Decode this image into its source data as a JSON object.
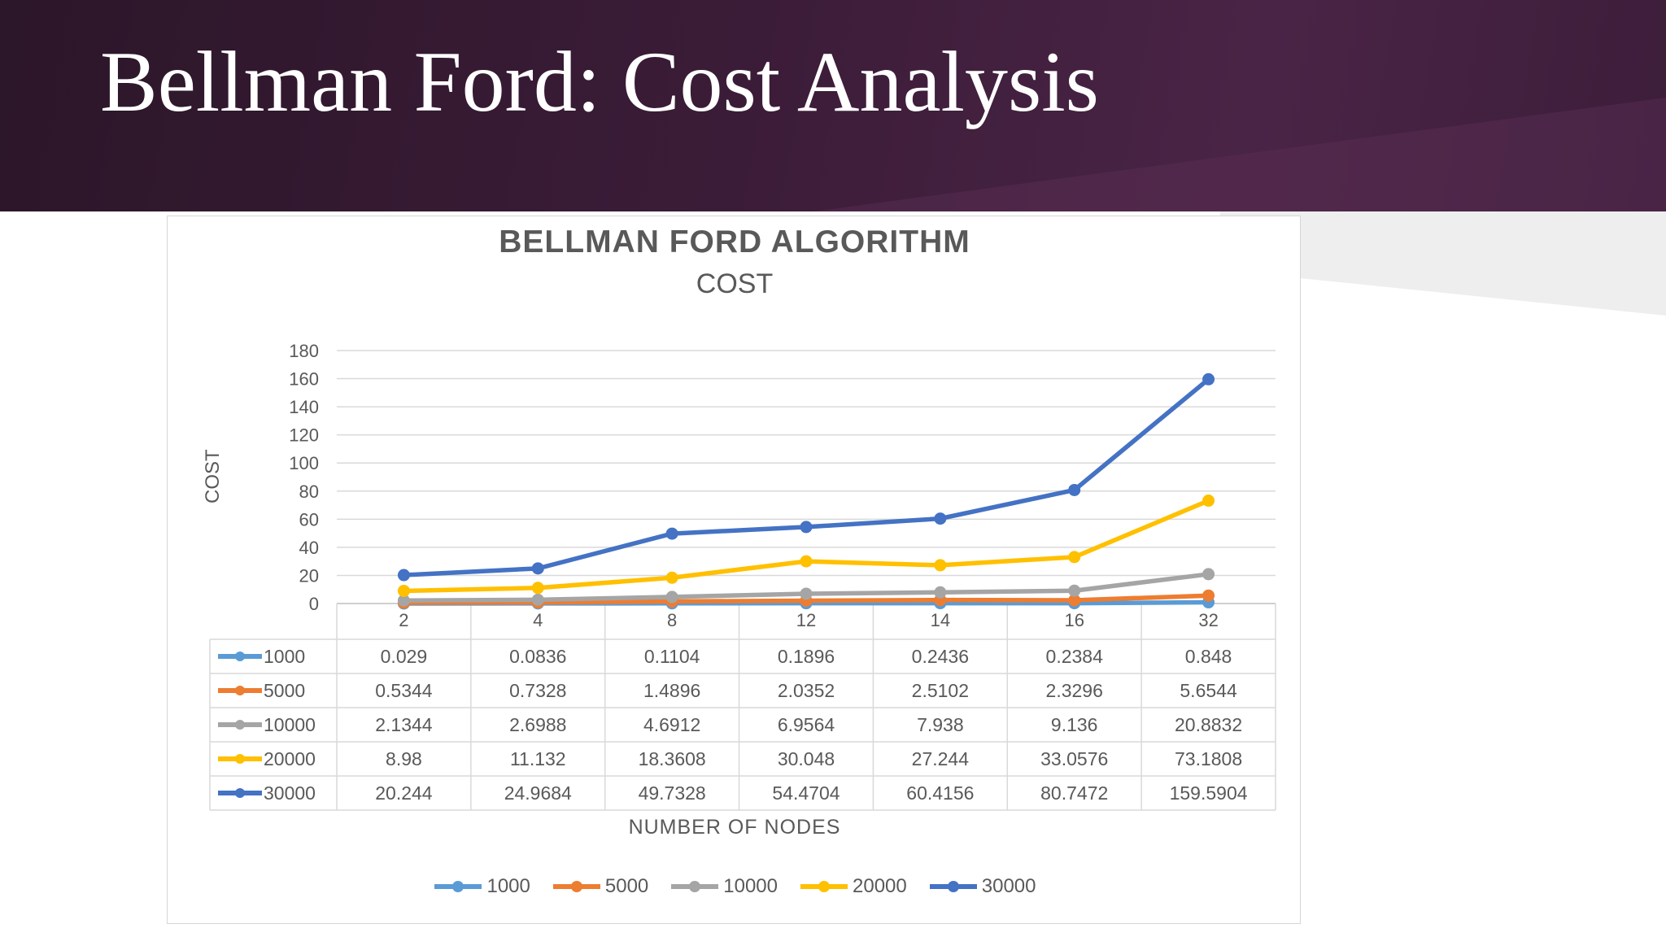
{
  "slide": {
    "title": "Bellman Ford: Cost Analysis"
  },
  "chart_data": {
    "type": "line",
    "title": "BELLMAN FORD ALGORITHM",
    "subtitle": "COST",
    "xlabel": "NUMBER  OF NODES",
    "ylabel": "COST",
    "categories": [
      "2",
      "4",
      "8",
      "12",
      "14",
      "16",
      "32"
    ],
    "ylim": [
      0,
      180
    ],
    "yticks": [
      0,
      20,
      40,
      60,
      80,
      100,
      120,
      140,
      160,
      180
    ],
    "grid": true,
    "legend": "bottom",
    "data_table": true,
    "series": [
      {
        "name": "1000",
        "color": "#5b9bd5",
        "values": [
          0.029,
          0.0836,
          0.1104,
          0.1896,
          0.2436,
          0.2384,
          0.848
        ]
      },
      {
        "name": "5000",
        "color": "#ed7d31",
        "values": [
          0.5344,
          0.7328,
          1.4896,
          2.0352,
          2.5102,
          2.3296,
          5.6544
        ]
      },
      {
        "name": "10000",
        "color": "#a5a5a5",
        "values": [
          2.1344,
          2.6988,
          4.6912,
          6.9564,
          7.938,
          9.136,
          20.8832
        ]
      },
      {
        "name": "20000",
        "color": "#ffc000",
        "values": [
          8.98,
          11.132,
          18.3608,
          30.048,
          27.244,
          33.0576,
          73.1808
        ]
      },
      {
        "name": "30000",
        "color": "#4472c4",
        "values": [
          20.244,
          24.9684,
          49.7328,
          54.4704,
          60.4156,
          80.7472,
          159.5904
        ]
      }
    ]
  }
}
